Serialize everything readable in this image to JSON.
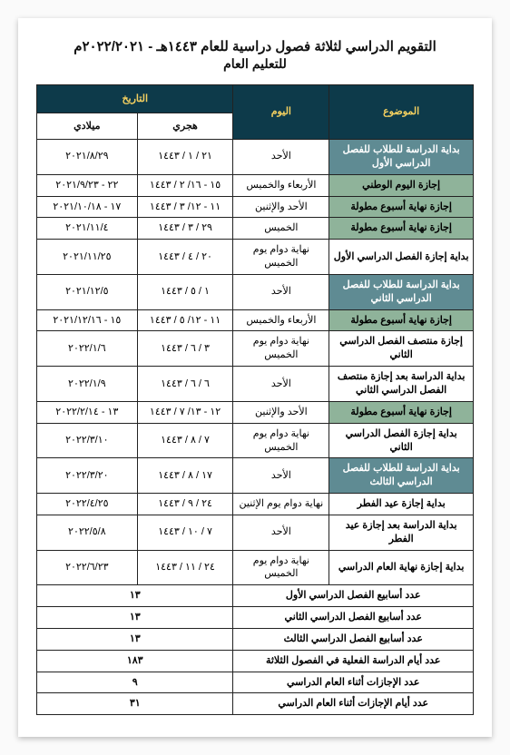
{
  "title_main": "التقويم الدراسي لثلاثة فصول دراسية للعام ١٤٤٣هـ  - ٢٠٢٢/٢٠٢١م",
  "title_sub": "للتعليم العام",
  "headers": {
    "subject": "الموضوع",
    "day": "اليوم",
    "date": "التاريخ",
    "hijri": "هجري",
    "greg": "ميلادي"
  },
  "rows": [
    {
      "style": "teal",
      "subject": "بداية الدراسة للطلاب للفصل الدراسي الأول",
      "day": "الأحد",
      "h": "٢١ / ١ / ١٤٤٣",
      "g": "٢٠٢١/٨/٢٩"
    },
    {
      "style": "green",
      "subject": "إجازة اليوم الوطني",
      "day": "الأربعاء والخميس",
      "h": "١٥ - ١٦/ ٢ / ١٤٤٣",
      "g": "٢٢ - ٢٠٢١/٩/٢٣"
    },
    {
      "style": "green",
      "subject": "إجازة نهاية أسبوع مطولة",
      "day": "الأحد والإثنين",
      "h": "١١ - ١٢/ ٣ / ١٤٤٣",
      "g": "١٧ - ٢٠٢١/١٠/١٨"
    },
    {
      "style": "green",
      "subject": "إجازة نهاية أسبوع مطولة",
      "day": "الخميس",
      "h": "٢٩ / ٣ / ١٤٤٣",
      "g": "٢٠٢١/١١/٤"
    },
    {
      "style": "plain",
      "subject": "بداية إجازة الفصل الدراسي الأول",
      "day": "نهاية دوام يوم الخميس",
      "h": "٢٠ / ٤ / ١٤٤٣",
      "g": "٢٠٢١/١١/٢٥"
    },
    {
      "style": "teal",
      "subject": "بداية الدراسة للطلاب للفصل الدراسي الثاني",
      "day": "الأحد",
      "h": "١ / ٥ / ١٤٤٣",
      "g": "٢٠٢١/١٢/٥"
    },
    {
      "style": "green",
      "subject": "إجازة نهاية أسبوع مطولة",
      "day": "الأربعاء والخميس",
      "h": "١١ - ١٢/ ٥ / ١٤٤٣",
      "g": "١٥ - ٢٠٢١/١٢/١٦"
    },
    {
      "style": "plain",
      "subject": "إجازة منتصف الفصل الدراسي الثاني",
      "day": "نهاية دوام يوم الخميس",
      "h": "٣ / ٦ / ١٤٤٣",
      "g": "٢٠٢٢/١/٦"
    },
    {
      "style": "plain",
      "subject": "بداية الدراسة بعد إجازة منتصف الفصل الدراسي الثاني",
      "day": "الأحد",
      "h": "٦ / ٦ / ١٤٤٣",
      "g": "٢٠٢٢/١/٩"
    },
    {
      "style": "green",
      "subject": "إجازة نهاية أسبوع مطولة",
      "day": "الأحد والإثنين",
      "h": "١٢ - ١٣/ ٧ / ١٤٤٣",
      "g": "١٣ - ٢٠٢٢/٢/١٤"
    },
    {
      "style": "plain",
      "subject": "بداية إجازة الفصل الدراسي الثاني",
      "day": "نهاية دوام يوم الخميس",
      "h": "٧ / ٨ / ١٤٤٣",
      "g": "٢٠٢٢/٣/١٠"
    },
    {
      "style": "teal",
      "subject": "بداية الدراسة للطلاب للفصل الدراسي الثالث",
      "day": "الأحد",
      "h": "١٧ / ٨ / ١٤٤٣",
      "g": "٢٠٢٢/٣/٢٠"
    },
    {
      "style": "plain",
      "subject": "بداية إجازة عيد الفطر",
      "day": "نهاية دوام يوم الإثنين",
      "h": "٢٤ / ٩ / ١٤٤٣",
      "g": "٢٠٢٢/٤/٢٥"
    },
    {
      "style": "plain",
      "subject": "بداية الدراسة بعد إجازة عيد الفطر",
      "day": "الأحد",
      "h": "٧ / ١٠ / ١٤٤٣",
      "g": "٢٠٢٢/٥/٨"
    },
    {
      "style": "plain",
      "subject": "بداية إجازة نهاية العام الدراسي",
      "day": "نهاية دوام يوم الخميس",
      "h": "٢٤ / ١١ / ١٤٤٣",
      "g": "٢٠٢٢/٦/٢٣"
    }
  ],
  "summary": [
    {
      "label": "عدد أسابيع الفصل الدراسي الأول",
      "val": "١٣"
    },
    {
      "label": "عدد أسابيع الفصل الدراسي الثاني",
      "val": "١٣"
    },
    {
      "label": "عدد أسابيع الفصل الدراسي الثالث",
      "val": "١٣"
    },
    {
      "label": "عدد أيام الدراسة الفعلية في الفصول الثلاثة",
      "val": "١٨٣"
    },
    {
      "label": "عدد الإجازات أثناء العام الدراسي",
      "val": "٩"
    },
    {
      "label": "عدد أيام الإجازات أثناء العام الدراسي",
      "val": "٣١"
    }
  ],
  "colors": {
    "header_bg": "#0d3a4a",
    "header_fg": "#f4d060",
    "green": "#8fb39a",
    "teal": "#5f8b93",
    "border": "#222222"
  }
}
